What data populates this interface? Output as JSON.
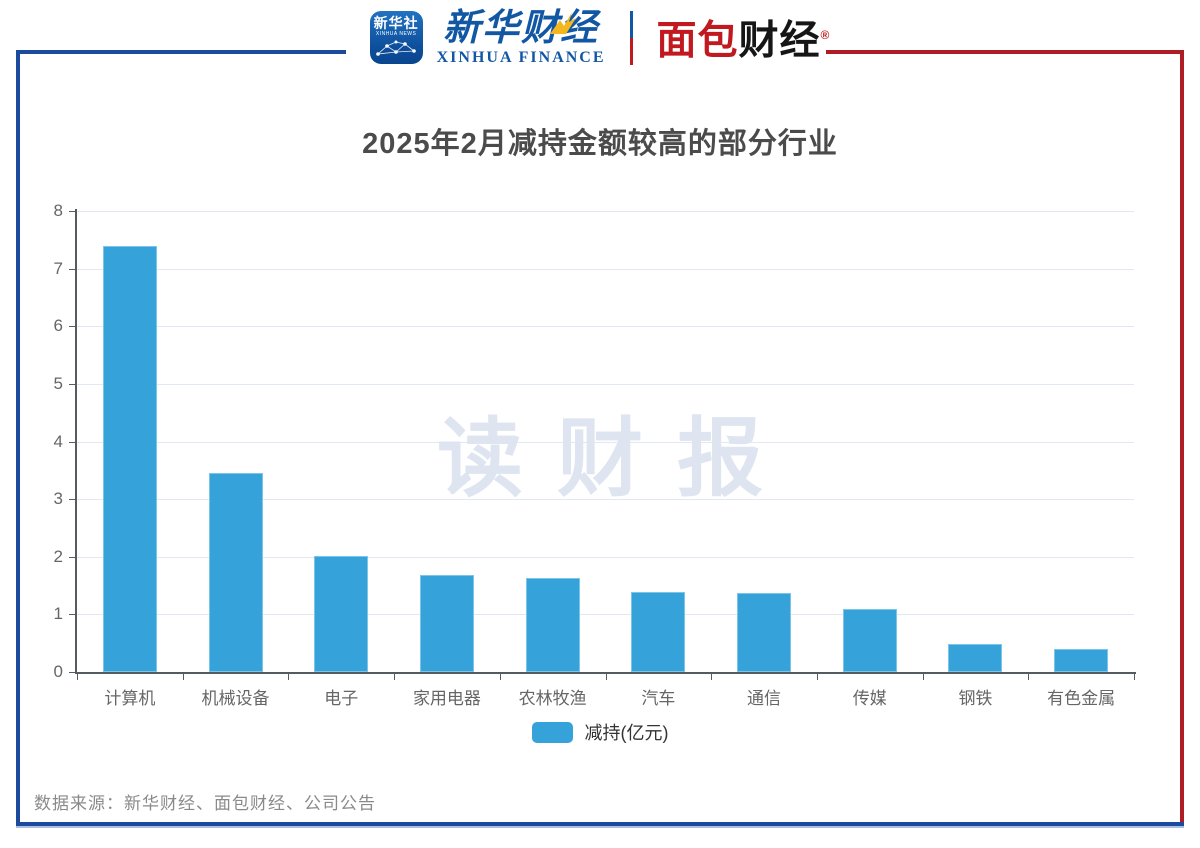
{
  "colors": {
    "frame_blue": "#1c4a9c",
    "frame_red": "#ae1c24",
    "bar": "#36a2da",
    "grid": "#e2e8f3",
    "axis": "#565b61"
  },
  "header": {
    "xinhua_icon": {
      "cn": "新华社",
      "en": "XINHUA NEWS"
    },
    "xinhua_finance": {
      "cn": "新华财经",
      "en": "XINHUA FINANCE"
    },
    "mianbao": {
      "part_red": "面包",
      "part_black": "财经",
      "reg": "®"
    }
  },
  "chart_data": {
    "type": "bar",
    "title": "2025年2月减持金额较高的部分行业",
    "categories": [
      "计算机",
      "机械设备",
      "电子",
      "家用电器",
      "农林牧渔",
      "汽车",
      "通信",
      "传媒",
      "钢铁",
      "有色金属"
    ],
    "values": [
      7.39,
      3.45,
      2.02,
      1.68,
      1.63,
      1.38,
      1.37,
      1.1,
      0.49,
      0.4
    ],
    "series_name": "减持(亿元)",
    "xlabel": "",
    "ylabel": "",
    "ylim": [
      0,
      8
    ],
    "yticks": [
      0,
      1,
      2,
      3,
      4,
      5,
      6,
      7,
      8
    ],
    "grid": true,
    "legend_position": "bottom",
    "bar_color": "#36a2da"
  },
  "watermark": "读财报",
  "footer": {
    "source": "数据来源：新华财经、面包财经、公司公告"
  }
}
